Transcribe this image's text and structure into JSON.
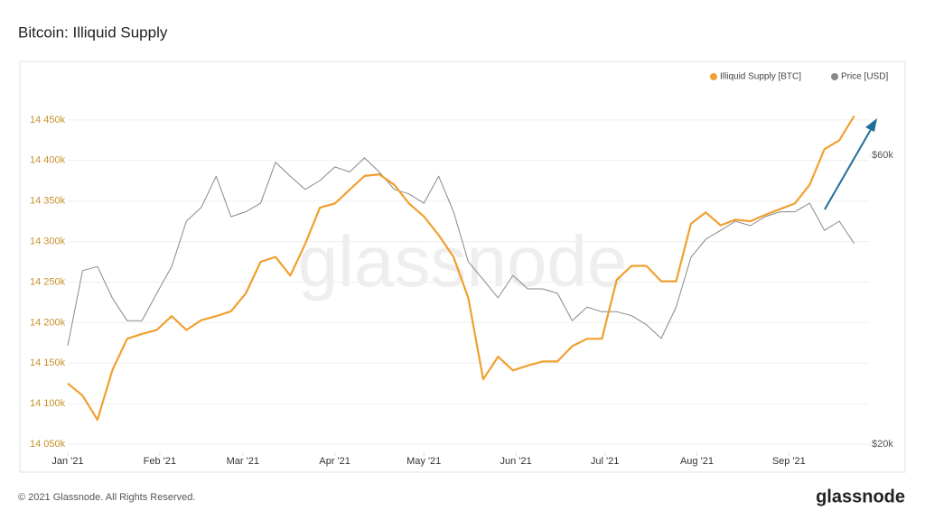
{
  "chart_data": {
    "type": "line",
    "title": "Bitcoin: Illiquid Supply",
    "xticks": [
      {
        "value": 0,
        "label": "Jan '21"
      },
      {
        "value": 6.2,
        "label": "Feb '21"
      },
      {
        "value": 11.8,
        "label": "Mar '21"
      },
      {
        "value": 18,
        "label": "Apr '21"
      },
      {
        "value": 24,
        "label": "May '21"
      },
      {
        "value": 30.2,
        "label": "Jun '21"
      },
      {
        "value": 36.2,
        "label": "Jul '21"
      },
      {
        "value": 42.4,
        "label": "Aug '21"
      },
      {
        "value": 48.6,
        "label": "Sep '21"
      }
    ],
    "xlim": [
      0,
      54
    ],
    "ylim": [
      14040,
      14490
    ],
    "yticks": [
      {
        "value": 14050,
        "label": "14 050k"
      },
      {
        "value": 14100,
        "label": "14 100k"
      },
      {
        "value": 14150,
        "label": "14 150k"
      },
      {
        "value": 14200,
        "label": "14 200k"
      },
      {
        "value": 14250,
        "label": "14 250k"
      },
      {
        "value": 14300,
        "label": "14 300k"
      },
      {
        "value": 14350,
        "label": "14 350k"
      },
      {
        "value": 14400,
        "label": "14 400k"
      },
      {
        "value": 14450,
        "label": "14 450k"
      }
    ],
    "y2lim": [
      19400,
      77600
    ],
    "y2log": true,
    "y2ticks": [
      {
        "value": 20000,
        "label": "$20k"
      },
      {
        "value": 60000,
        "label": "$60k"
      }
    ],
    "grid": true,
    "legend": "top-right",
    "series": [
      {
        "name": "Illiquid Supply [BTC]",
        "color": "#f0a030",
        "values": [
          14125,
          14110,
          14080,
          14141,
          14180,
          14186,
          14191,
          14208,
          14191,
          14203,
          14208,
          14214,
          14236,
          14275,
          14281,
          14258,
          14297,
          14342,
          14347,
          14364,
          14381,
          14383,
          14370,
          14347,
          14331,
          14308,
          14281,
          14230,
          14130,
          14158,
          14141,
          14147,
          14152,
          14152,
          14171,
          14180,
          14180,
          14253,
          14270,
          14270,
          14251,
          14251,
          14322,
          14336,
          14320,
          14327,
          14325,
          14333,
          14340,
          14347,
          14370,
          14414,
          14425,
          14455
        ]
      },
      {
        "name": "Price [USD]",
        "color": "#888888",
        "axis": "y2",
        "values": [
          29080,
          38700,
          39300,
          34900,
          32000,
          32000,
          35500,
          39300,
          46700,
          49200,
          55400,
          47500,
          48400,
          50000,
          58400,
          55400,
          52700,
          54500,
          57400,
          56300,
          59400,
          56300,
          52700,
          51800,
          50000,
          55400,
          48400,
          40000,
          37400,
          34900,
          38000,
          36100,
          36100,
          35500,
          32000,
          33700,
          33100,
          33100,
          32600,
          31500,
          29900,
          33700,
          40700,
          43600,
          45100,
          46700,
          45900,
          47500,
          48400,
          48400,
          50000,
          45100,
          46700,
          42900
        ]
      }
    ],
    "watermark": "glassnode",
    "footer": "© 2021 Glassnode. All Rights Reserved.",
    "logo": "glassnode"
  }
}
